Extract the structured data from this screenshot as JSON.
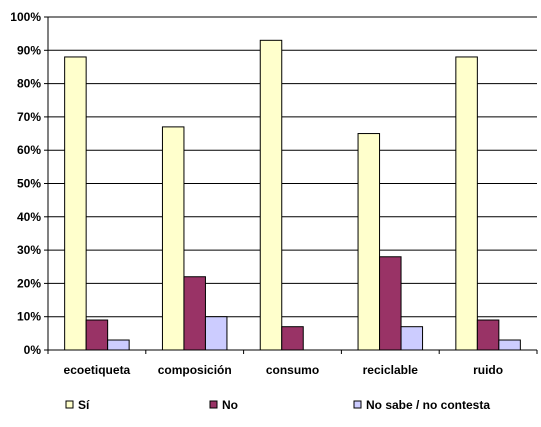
{
  "chart_data": {
    "type": "bar",
    "categories": [
      "ecoetiqueta",
      "composición",
      "consumo",
      "reciclable",
      "ruido"
    ],
    "series": [
      {
        "name": "Sí",
        "color": "#FFFFCC",
        "values": [
          88,
          67,
          93,
          65,
          88
        ]
      },
      {
        "name": "No",
        "color": "#993366",
        "values": [
          9,
          22,
          7,
          28,
          9
        ]
      },
      {
        "name": "No sabe / no contesta",
        "color": "#CCCCFF",
        "values": [
          3,
          10,
          0,
          7,
          3
        ]
      }
    ],
    "ylim": [
      0,
      100
    ],
    "yticks": [
      "0%",
      "10%",
      "20%",
      "30%",
      "40%",
      "50%",
      "60%",
      "70%",
      "80%",
      "90%",
      "100%"
    ],
    "grid": true,
    "legend_position": "bottom",
    "title": "",
    "xlabel": "",
    "ylabel": ""
  }
}
